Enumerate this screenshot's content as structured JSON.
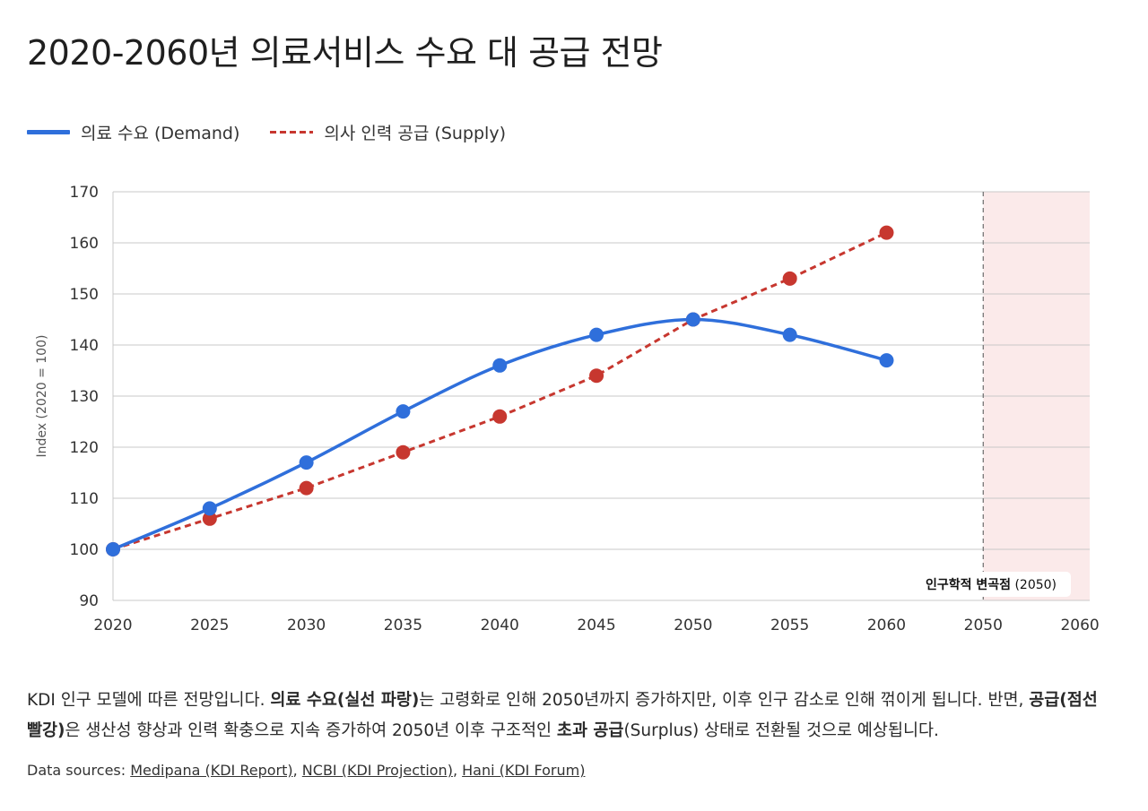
{
  "title": "2020-2060년 의료서비스 수요 대 공급 전망",
  "legend": [
    {
      "label": "의료 수요 (Demand)",
      "style": "solid",
      "color": "#2f6fdb"
    },
    {
      "label": "의사 인력 공급 (Supply)",
      "style": "dashed",
      "color": "#c7372f"
    }
  ],
  "chart_data": {
    "type": "line",
    "title": "2020-2060년 의료서비스 수요 대 공급 전망",
    "xlabel": "",
    "ylabel": "Index (2020 = 100)",
    "ylim": [
      90,
      170
    ],
    "yticks": [
      90,
      100,
      110,
      120,
      130,
      140,
      150,
      160,
      170
    ],
    "x": [
      "2020",
      "2025",
      "2030",
      "2035",
      "2040",
      "2045",
      "2050",
      "2055",
      "2060"
    ],
    "extra_x_ticks": [
      "2050",
      "2060"
    ],
    "grid": true,
    "legend_position": "top-left",
    "series": [
      {
        "name": "의료 수요 (Demand)",
        "style": "solid",
        "color": "#2f6fdb",
        "values": [
          100,
          108,
          117,
          127,
          136,
          142,
          145,
          142,
          137
        ]
      },
      {
        "name": "의사 인력 공급 (Supply)",
        "style": "dashed",
        "color": "#c7372f",
        "values": [
          100,
          106,
          112,
          119,
          126,
          134,
          145,
          153,
          162
        ]
      }
    ],
    "annotations": [
      {
        "type": "vline",
        "x": "2050",
        "label": "인구학적 변곡점 (2050)",
        "label_bold": "인구학적 변곡점",
        "label_rest": " (2050)"
      },
      {
        "type": "shaded_region",
        "from": "2050",
        "to": "2060",
        "color": "#fbeaea"
      }
    ]
  },
  "description": {
    "parts": [
      {
        "text": "KDI 인구 모델에 따른 전망입니다. ",
        "bold": false
      },
      {
        "text": "의료 수요(실선 파랑)",
        "bold": true
      },
      {
        "text": "는 고령화로 인해 2050년까지 증가하지만, 이후 인구 감소로 인해 꺾이게 됩니다. 반면, ",
        "bold": false
      },
      {
        "text": "공급(점선 빨강)",
        "bold": true
      },
      {
        "text": "은 생산성 향상과 인력 확충으로 지속 증가하여 2050년 이후 구조적인 ",
        "bold": false
      },
      {
        "text": "초과 공급",
        "bold": true
      },
      {
        "text": "(Surplus) 상태로 전환될 것으로 예상됩니다.",
        "bold": false
      }
    ]
  },
  "sources": {
    "prefix": "Data sources: ",
    "links": [
      "Medipana (KDI Report)",
      "NCBI (KDI Projection)",
      "Hani (KDI Forum)"
    ],
    "separator": ", "
  }
}
